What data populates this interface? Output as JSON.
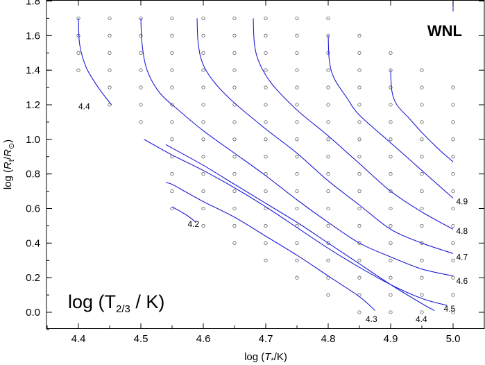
{
  "chart_data": {
    "type": "line",
    "xlabel": "log (T_*/K)",
    "ylabel": "log (R_t/R_⊙)",
    "xlim": [
      4.35,
      5.05
    ],
    "ylim": [
      -0.1,
      1.8
    ],
    "x_ticks": [
      "4.4",
      "4.5",
      "4.6",
      "4.7",
      "4.8",
      "4.9",
      "5.0"
    ],
    "y_ticks": [
      "0.0",
      "0.2",
      "0.4",
      "0.6",
      "0.8",
      "1.0",
      "1.2",
      "1.4",
      "1.6",
      "1.8"
    ],
    "panel_label": "WNL",
    "annotation": {
      "prefix": "log (T",
      "sub": "2/3",
      "suffix": " / K)"
    },
    "grid": false,
    "line_color": "#1a1ad8",
    "model_grid": [
      {
        "x": 4.4,
        "y": [
          1.4,
          1.5,
          1.6,
          1.7
        ]
      },
      {
        "x": 4.45,
        "y": [
          1.2,
          1.3,
          1.4,
          1.5,
          1.6,
          1.7
        ]
      },
      {
        "x": 4.5,
        "y": [
          1.1,
          1.2,
          1.3,
          1.4,
          1.5,
          1.6,
          1.7
        ]
      },
      {
        "x": 4.55,
        "y": [
          0.6,
          0.7,
          0.8,
          0.9,
          1.0,
          1.1,
          1.2,
          1.3,
          1.4,
          1.5,
          1.6,
          1.7
        ]
      },
      {
        "x": 4.6,
        "y": [
          0.5,
          0.6,
          0.7,
          0.8,
          0.9,
          1.0,
          1.1,
          1.2,
          1.3,
          1.4,
          1.5,
          1.6,
          1.7
        ]
      },
      {
        "x": 4.65,
        "y": [
          0.4,
          0.5,
          0.6,
          0.7,
          0.8,
          0.9,
          1.0,
          1.1,
          1.2,
          1.3,
          1.4,
          1.5,
          1.6,
          1.7
        ]
      },
      {
        "x": 4.7,
        "y": [
          0.3,
          0.4,
          0.5,
          0.6,
          0.7,
          0.8,
          0.9,
          1.0,
          1.1,
          1.2,
          1.3,
          1.4,
          1.5,
          1.6,
          1.7
        ]
      },
      {
        "x": 4.75,
        "y": [
          0.2,
          0.3,
          0.4,
          0.5,
          0.6,
          0.7,
          0.8,
          0.9,
          1.0,
          1.1,
          1.2,
          1.3,
          1.4,
          1.5,
          1.6,
          1.7
        ]
      },
      {
        "x": 4.8,
        "y": [
          0.1,
          0.2,
          0.3,
          0.4,
          0.5,
          0.6,
          0.7,
          0.8,
          0.9,
          1.0,
          1.1,
          1.2,
          1.3,
          1.4,
          1.5,
          1.6,
          1.7
        ]
      },
      {
        "x": 4.85,
        "y": [
          0.0,
          0.1,
          0.2,
          0.3,
          0.4,
          0.5,
          0.6,
          0.7,
          0.8,
          0.9,
          1.0,
          1.1,
          1.2,
          1.3,
          1.4,
          1.5,
          1.6
        ]
      },
      {
        "x": 4.9,
        "y": [
          0.0,
          0.1,
          0.2,
          0.3,
          0.4,
          0.5,
          0.6,
          0.7,
          0.8,
          0.9,
          1.0,
          1.1,
          1.2,
          1.3,
          1.4,
          1.5
        ]
      },
      {
        "x": 4.95,
        "y": [
          0.0,
          0.1,
          0.2,
          0.3,
          0.4,
          0.5,
          0.6,
          0.7,
          0.8,
          0.9,
          1.0,
          1.1,
          1.2,
          1.3,
          1.4
        ]
      },
      {
        "x": 5.0,
        "y": [
          0.0,
          0.1,
          0.2,
          0.3,
          0.4,
          0.5,
          0.6,
          0.7,
          0.8,
          0.9,
          1.0,
          1.1,
          1.2,
          1.3
        ]
      }
    ],
    "contours": [
      {
        "name": "4.4",
        "label": "4.4",
        "label_at": [
          4.4,
          1.19
        ],
        "points": [
          [
            4.4,
            1.7
          ],
          [
            4.402,
            1.55
          ],
          [
            4.412,
            1.42
          ],
          [
            4.428,
            1.32
          ],
          [
            4.442,
            1.25
          ],
          [
            4.453,
            1.2
          ]
        ]
      },
      {
        "name": "4.2",
        "label": "4.2",
        "label_at": [
          4.575,
          0.51
        ],
        "points": [
          [
            4.55,
            0.61
          ],
          [
            4.565,
            0.58
          ],
          [
            4.578,
            0.55
          ],
          [
            4.588,
            0.52
          ]
        ]
      },
      {
        "name": "4.3",
        "label": "4.3",
        "label_at": [
          4.86,
          -0.04
        ],
        "points": [
          [
            4.54,
            0.75
          ],
          [
            4.55,
            0.74
          ],
          [
            4.57,
            0.7
          ],
          [
            4.6,
            0.64
          ],
          [
            4.65,
            0.55
          ],
          [
            4.7,
            0.44
          ],
          [
            4.75,
            0.33
          ],
          [
            4.8,
            0.21
          ],
          [
            4.85,
            0.09
          ],
          [
            4.875,
            0.01
          ]
        ]
      },
      {
        "name": "4.4b",
        "label": "4.4",
        "label_at": [
          4.94,
          -0.04
        ],
        "points": [
          [
            4.54,
            0.97
          ],
          [
            4.55,
            0.95
          ],
          [
            4.6,
            0.85
          ],
          [
            4.65,
            0.74
          ],
          [
            4.7,
            0.63
          ],
          [
            4.75,
            0.52
          ],
          [
            4.8,
            0.4
          ],
          [
            4.85,
            0.28
          ],
          [
            4.9,
            0.16
          ],
          [
            4.95,
            0.05
          ],
          [
            4.97,
            0.01
          ]
        ]
      },
      {
        "name": "4.5",
        "label": "4.5",
        "label_at": [
          4.985,
          0.02
        ],
        "points": [
          [
            4.505,
            1.0
          ],
          [
            4.55,
            0.91
          ],
          [
            4.6,
            0.82
          ],
          [
            4.65,
            0.72
          ],
          [
            4.7,
            0.61
          ],
          [
            4.75,
            0.49
          ],
          [
            4.8,
            0.37
          ],
          [
            4.85,
            0.26
          ],
          [
            4.9,
            0.16
          ],
          [
            4.95,
            0.08
          ],
          [
            4.99,
            0.04
          ]
        ]
      },
      {
        "name": "4.6",
        "label": "4.6",
        "label_at": [
          5.005,
          0.18
        ],
        "points": [
          [
            4.5,
            1.7
          ],
          [
            4.502,
            1.55
          ],
          [
            4.51,
            1.4
          ],
          [
            4.53,
            1.27
          ],
          [
            4.56,
            1.17
          ],
          [
            4.6,
            1.05
          ],
          [
            4.65,
            0.92
          ],
          [
            4.7,
            0.79
          ],
          [
            4.75,
            0.65
          ],
          [
            4.8,
            0.52
          ],
          [
            4.85,
            0.4
          ],
          [
            4.9,
            0.32
          ],
          [
            4.95,
            0.25
          ],
          [
            5.0,
            0.21
          ]
        ]
      },
      {
        "name": "4.7",
        "label": "4.7",
        "label_at": [
          5.005,
          0.32
        ],
        "points": [
          [
            4.59,
            1.7
          ],
          [
            4.592,
            1.55
          ],
          [
            4.6,
            1.43
          ],
          [
            4.62,
            1.32
          ],
          [
            4.65,
            1.21
          ],
          [
            4.7,
            1.06
          ],
          [
            4.75,
            0.92
          ],
          [
            4.8,
            0.76
          ],
          [
            4.85,
            0.62
          ],
          [
            4.9,
            0.48
          ],
          [
            4.95,
            0.4
          ],
          [
            5.0,
            0.34
          ]
        ]
      },
      {
        "name": "4.8",
        "label": "4.8",
        "label_at": [
          5.005,
          0.47
        ],
        "points": [
          [
            4.68,
            1.7
          ],
          [
            4.682,
            1.55
          ],
          [
            4.69,
            1.44
          ],
          [
            4.71,
            1.32
          ],
          [
            4.75,
            1.17
          ],
          [
            4.8,
            1.02
          ],
          [
            4.85,
            0.86
          ],
          [
            4.9,
            0.7
          ],
          [
            4.95,
            0.58
          ],
          [
            5.0,
            0.48
          ]
        ]
      },
      {
        "name": "4.9",
        "label": "4.9",
        "label_at": [
          5.005,
          0.64
        ],
        "points": [
          [
            4.8,
            1.6
          ],
          [
            4.802,
            1.45
          ],
          [
            4.81,
            1.35
          ],
          [
            4.83,
            1.24
          ],
          [
            4.85,
            1.14
          ],
          [
            4.9,
            0.98
          ],
          [
            4.95,
            0.82
          ],
          [
            5.0,
            0.66
          ]
        ]
      },
      {
        "name": "5.0",
        "label": "",
        "label_at": [
          5.0,
          1.8
        ],
        "points": [
          [
            5.0,
            1.8
          ],
          [
            5.0,
            1.74
          ]
        ]
      },
      {
        "name": "4.95",
        "label": "",
        "label_at": [
          4.9,
          1.4
        ],
        "points": [
          [
            4.9,
            1.4
          ],
          [
            4.902,
            1.28
          ],
          [
            4.91,
            1.2
          ],
          [
            4.93,
            1.12
          ],
          [
            4.95,
            1.04
          ],
          [
            4.975,
            0.95
          ],
          [
            5.0,
            0.87
          ]
        ]
      }
    ]
  }
}
